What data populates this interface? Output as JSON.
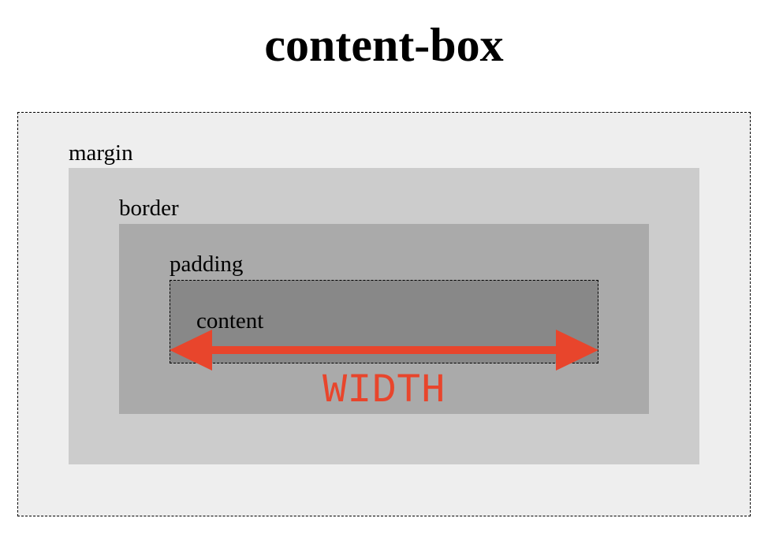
{
  "title": "content-box",
  "boxes": {
    "margin": "margin",
    "border": "border",
    "padding": "padding",
    "content": "content"
  },
  "dimension_label": "WIDTH",
  "colors": {
    "margin_fill": "#eeeeee",
    "border_fill": "#cccccc",
    "padding_fill": "#aaaaaa",
    "content_fill": "#888888",
    "accent": "#e8452c"
  }
}
